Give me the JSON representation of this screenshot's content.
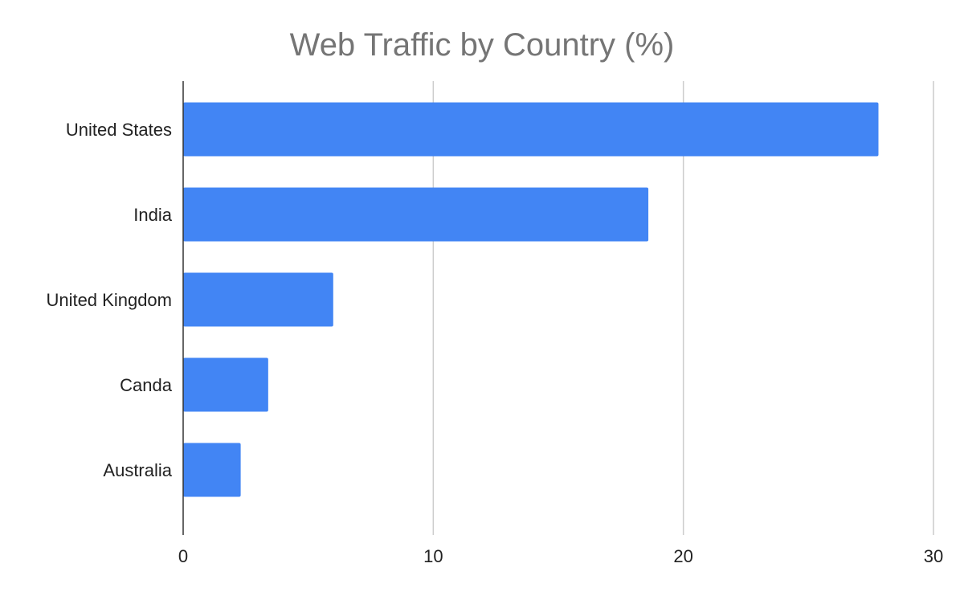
{
  "chart_data": {
    "type": "bar",
    "orientation": "horizontal",
    "title": "Web Traffic by Country (%)",
    "xlabel": "",
    "ylabel": "",
    "categories": [
      "United States",
      "India",
      "United Kingdom",
      "Canda",
      "Australia"
    ],
    "values": [
      27.8,
      18.6,
      6.0,
      3.4,
      2.3
    ],
    "xlim": [
      0,
      30
    ],
    "xticks": [
      "0",
      "10",
      "20",
      "30"
    ],
    "grid": true,
    "legend": "none",
    "bar_color": "#4285f4",
    "grid_color": "#cccccc",
    "axis_color": "#333333"
  }
}
